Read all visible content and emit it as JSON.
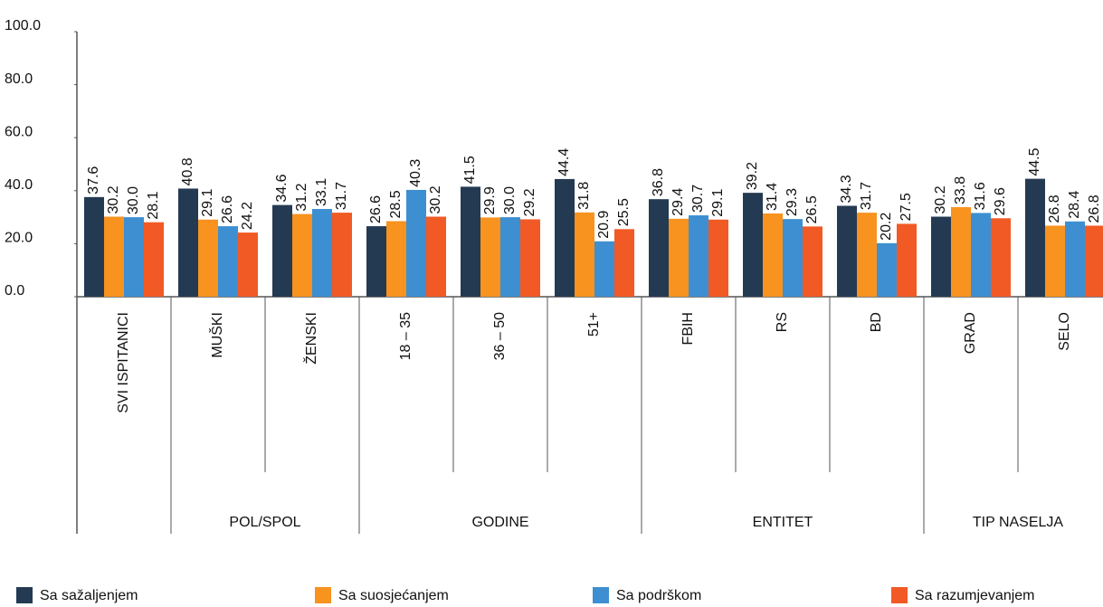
{
  "chart_data": {
    "type": "bar",
    "categories": [
      "SVI ISPITANICI",
      "MUŠKI",
      "ŽENSKI",
      "18 – 35",
      "36 – 50",
      "51+",
      "FBIH",
      "RS",
      "BD",
      "GRAD",
      "SELO"
    ],
    "groups": [
      {
        "label": "POL/SPOL",
        "categories": [
          "MUŠKI",
          "ŽENSKI"
        ]
      },
      {
        "label": "GODINE",
        "categories": [
          "18 – 35",
          "36 – 50",
          "51+"
        ]
      },
      {
        "label": "ENTITET",
        "categories": [
          "FBIH",
          "RS",
          "BD"
        ]
      },
      {
        "label": "TIP NASELJA",
        "categories": [
          "GRAD",
          "SELO"
        ]
      }
    ],
    "series": [
      {
        "name": "Sa sažaljenjem",
        "color": "#243a52",
        "values": [
          37.6,
          40.8,
          34.6,
          26.6,
          41.5,
          44.4,
          36.8,
          39.2,
          34.3,
          30.2,
          44.5
        ],
        "value_labels": [
          "37.6",
          "40.8",
          "34.6",
          "26.6",
          "41.5",
          "44.4",
          "36.8",
          "39.2",
          "34.3",
          "30.2",
          "44.5"
        ]
      },
      {
        "name": "Sa suosjećanjem",
        "color": "#f7931e",
        "values": [
          30.2,
          29.1,
          31.2,
          28.5,
          29.9,
          31.8,
          29.4,
          31.4,
          31.7,
          33.8,
          26.8
        ],
        "value_labels": [
          "30.2",
          "29.1",
          "31.2",
          "28.5",
          "29.9",
          "31.8",
          "29.4",
          "31.4",
          "31.7",
          "33.8",
          "26.8"
        ]
      },
      {
        "name": "Sa podrškom",
        "color": "#3d8fd1",
        "values": [
          30,
          26.6,
          33.1,
          40.3,
          30,
          20.9,
          30.7,
          29.3,
          20.2,
          31.6,
          28.4
        ],
        "value_labels": [
          "30.0",
          "26.6",
          "33.1",
          "40.3",
          "30.0",
          "20.9",
          "30.7",
          "29.3",
          "20.2",
          "31.6",
          "28.4"
        ]
      },
      {
        "name": "Sa razumjevanjem",
        "color": "#f15a24",
        "values": [
          28.1,
          24.2,
          31.7,
          30.2,
          29.2,
          25.5,
          29.1,
          26.5,
          27.5,
          29.6,
          26.8
        ],
        "value_labels": [
          "28.1",
          "24.2",
          "31.7",
          "30.2",
          "29.2",
          "25.5",
          "29.1",
          "26.5",
          "27.5",
          "29.6",
          "26.8"
        ]
      }
    ],
    "ylim": [
      0,
      100
    ],
    "yticks": [
      {
        "value": 0,
        "label": "0.0"
      },
      {
        "value": 20,
        "label": "20.0"
      },
      {
        "value": 40,
        "label": "40.0"
      },
      {
        "value": 60,
        "label": "60.0"
      },
      {
        "value": 80,
        "label": "80.0"
      },
      {
        "value": 100,
        "label": "100.0"
      }
    ],
    "legend": "bottom"
  }
}
